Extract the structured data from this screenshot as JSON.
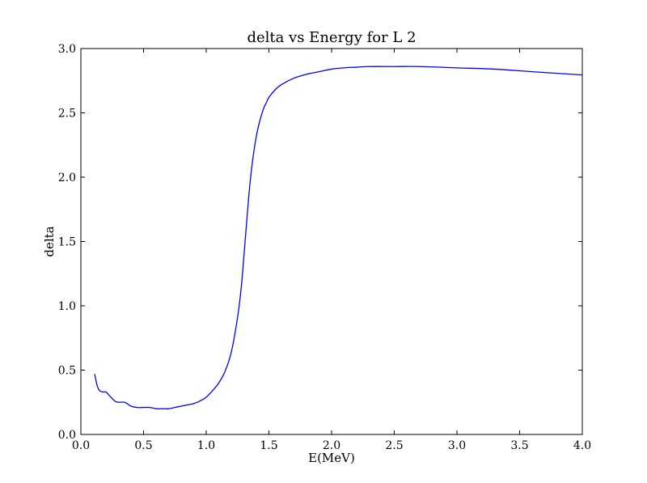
{
  "chart_data": {
    "type": "line",
    "title": "delta vs Energy for L 2",
    "xlabel": "E(MeV)",
    "ylabel": "delta",
    "xlim": [
      0.0,
      4.0
    ],
    "ylim": [
      0.0,
      3.0
    ],
    "xticks": [
      0.0,
      0.5,
      1.0,
      1.5,
      2.0,
      2.5,
      3.0,
      3.5,
      4.0
    ],
    "xtick_labels": [
      "0.0",
      "0.5",
      "1.0",
      "1.5",
      "2.0",
      "2.5",
      "3.0",
      "3.5",
      "4.0"
    ],
    "yticks": [
      0.0,
      0.5,
      1.0,
      1.5,
      2.0,
      2.5,
      3.0
    ],
    "ytick_labels": [
      "0.0",
      "0.5",
      "1.0",
      "1.5",
      "2.0",
      "2.5",
      "3.0"
    ],
    "grid": false,
    "legend": "none",
    "series": [
      {
        "color": "#0000ff",
        "x": [
          0.11,
          0.13,
          0.15,
          0.18,
          0.2,
          0.23,
          0.27,
          0.3,
          0.35,
          0.4,
          0.45,
          0.5,
          0.55,
          0.6,
          0.65,
          0.7,
          0.75,
          0.8,
          0.85,
          0.9,
          0.95,
          1.0,
          1.05,
          1.1,
          1.15,
          1.2,
          1.25,
          1.28,
          1.3,
          1.32,
          1.34,
          1.36,
          1.38,
          1.4,
          1.42,
          1.44,
          1.46,
          1.48,
          1.5,
          1.55,
          1.6,
          1.7,
          1.8,
          1.9,
          2.0,
          2.1,
          2.2,
          2.3,
          2.5,
          2.7,
          3.0,
          3.3,
          3.6,
          4.0
        ],
        "y": [
          0.47,
          0.38,
          0.34,
          0.33,
          0.33,
          0.3,
          0.26,
          0.25,
          0.25,
          0.22,
          0.21,
          0.21,
          0.21,
          0.2,
          0.2,
          0.2,
          0.21,
          0.22,
          0.23,
          0.24,
          0.26,
          0.29,
          0.34,
          0.4,
          0.49,
          0.64,
          0.91,
          1.15,
          1.38,
          1.62,
          1.86,
          2.05,
          2.2,
          2.32,
          2.41,
          2.48,
          2.54,
          2.58,
          2.62,
          2.68,
          2.72,
          2.77,
          2.8,
          2.82,
          2.84,
          2.85,
          2.855,
          2.86,
          2.86,
          2.86,
          2.85,
          2.84,
          2.82,
          2.795
        ]
      }
    ]
  }
}
